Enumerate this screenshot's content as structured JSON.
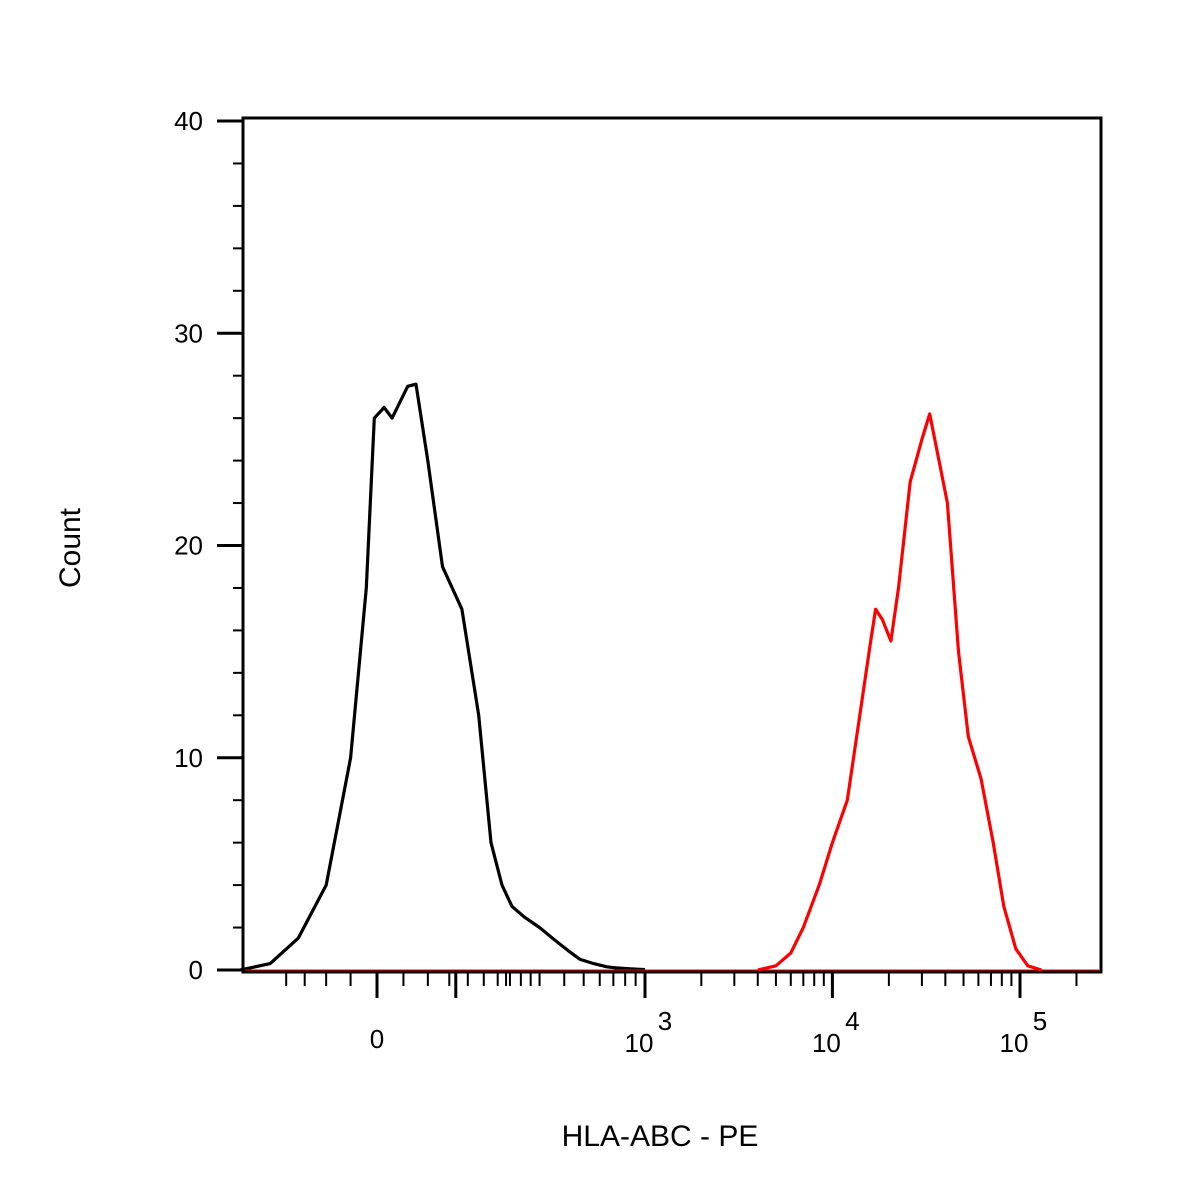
{
  "chart_data": {
    "type": "line",
    "title": "",
    "xlabel": "HLA-ABC - PE",
    "ylabel": "Count",
    "x_scale": "biexponential",
    "ylim": [
      0,
      40
    ],
    "grid": false,
    "y_ticks": [
      {
        "value": 0,
        "label": "0"
      },
      {
        "value": 10,
        "label": "10"
      },
      {
        "value": 20,
        "label": "20"
      },
      {
        "value": 30,
        "label": "30"
      },
      {
        "value": 40,
        "label": "40"
      }
    ],
    "x_ticks": [
      {
        "value": 0,
        "base": "0",
        "exp": ""
      },
      {
        "value": 1000,
        "base": "10",
        "exp": "3"
      },
      {
        "value": 10000,
        "base": "10",
        "exp": "4"
      },
      {
        "value": 100000,
        "base": "10",
        "exp": "5"
      }
    ],
    "series": [
      {
        "color": "#000000",
        "points": [
          [
            -220,
            0
          ],
          [
            -150,
            0.3
          ],
          [
            -100,
            1.5
          ],
          [
            -60,
            4
          ],
          [
            -30,
            10
          ],
          [
            -12,
            18
          ],
          [
            -3,
            26
          ],
          [
            8,
            26.5
          ],
          [
            17,
            26
          ],
          [
            35,
            27.5
          ],
          [
            45,
            27.6
          ],
          [
            60,
            24
          ],
          [
            80,
            19
          ],
          [
            110,
            17
          ],
          [
            140,
            12
          ],
          [
            165,
            6
          ],
          [
            190,
            4
          ],
          [
            215,
            3
          ],
          [
            250,
            2.5
          ],
          [
            300,
            2
          ],
          [
            360,
            1.4
          ],
          [
            420,
            0.9
          ],
          [
            480,
            0.5
          ],
          [
            560,
            0.3
          ],
          [
            650,
            0.15
          ],
          [
            720,
            0.1
          ],
          [
            850,
            0.05
          ],
          [
            1000,
            0.02
          ]
        ]
      },
      {
        "color": "#ff0000",
        "points": [
          [
            4000,
            0
          ],
          [
            5000,
            0.2
          ],
          [
            6000,
            0.8
          ],
          [
            7000,
            2
          ],
          [
            8500,
            4
          ],
          [
            10000,
            6
          ],
          [
            12000,
            8
          ],
          [
            14000,
            12
          ],
          [
            16000,
            15.5
          ],
          [
            17000,
            17
          ],
          [
            18500,
            16.5
          ],
          [
            20500,
            15.5
          ],
          [
            22500,
            18
          ],
          [
            26000,
            23
          ],
          [
            30000,
            25
          ],
          [
            33000,
            26.2
          ],
          [
            37000,
            24
          ],
          [
            41000,
            22
          ],
          [
            47000,
            15
          ],
          [
            53000,
            11
          ],
          [
            62000,
            9
          ],
          [
            72000,
            6
          ],
          [
            82000,
            3
          ],
          [
            95000,
            1
          ],
          [
            110000,
            0.2
          ],
          [
            130000,
            0
          ]
        ]
      }
    ]
  }
}
